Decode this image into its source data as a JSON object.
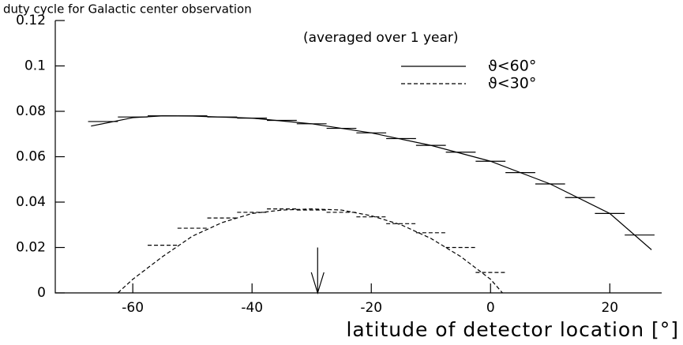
{
  "chart_data": {
    "type": "line",
    "title": "duty cycle for Galactic center observation",
    "subtitle": "(averaged over 1 year)",
    "x_label": "latitude of detector location [°]",
    "xlim": [
      -73,
      28.7
    ],
    "ylim": [
      0,
      0.12
    ],
    "xticks": [
      -60,
      -40,
      -20,
      0,
      20
    ],
    "yticks": [
      0,
      0.02,
      0.04,
      0.06,
      0.08,
      0.1,
      0.12
    ],
    "legend": "upper right",
    "series": [
      {
        "name": "ϑ<60°",
        "color": "#000",
        "dash": "solid",
        "x": [
          -67,
          -60,
          -55,
          -50,
          -40,
          -30,
          -20,
          -10,
          0,
          10,
          20,
          27
        ],
        "values": [
          0.0735,
          0.0772,
          0.078,
          0.0779,
          0.077,
          0.0745,
          0.0705,
          0.065,
          0.058,
          0.048,
          0.035,
          0.019
        ],
        "steps": {
          "width": 5,
          "x": [
            -65,
            -60,
            -55,
            -50,
            -45,
            -40,
            -35,
            -30,
            -25,
            -20,
            -15,
            -10,
            -5,
            0,
            5,
            10,
            15,
            20,
            25
          ],
          "values": [
            0.0755,
            0.0775,
            0.078,
            0.078,
            0.0775,
            0.077,
            0.076,
            0.0745,
            0.0725,
            0.0705,
            0.068,
            0.065,
            0.062,
            0.058,
            0.053,
            0.048,
            0.042,
            0.035,
            0.0255
          ]
        }
      },
      {
        "name": "ϑ<30°",
        "color": "#000",
        "dash": "dashed",
        "x": [
          -62.5,
          -60,
          -55,
          -50,
          -45,
          -40,
          -35,
          -30,
          -25,
          -20,
          -15,
          -10,
          -5,
          0,
          2
        ],
        "values": [
          0,
          0.006,
          0.016,
          0.025,
          0.031,
          0.035,
          0.0365,
          0.037,
          0.0365,
          0.034,
          0.03,
          0.024,
          0.016,
          0.006,
          0
        ],
        "steps": {
          "width": 5,
          "x": [
            -55,
            -50,
            -45,
            -40,
            -35,
            -30,
            -25,
            -20,
            -15,
            -10,
            -5,
            0
          ],
          "values": [
            0.021,
            0.0285,
            0.033,
            0.0355,
            0.037,
            0.0365,
            0.0355,
            0.0335,
            0.0305,
            0.0265,
            0.02,
            0.009
          ]
        }
      }
    ],
    "arrow": {
      "x": -29,
      "y_from": 0.02,
      "y_to": 0
    }
  }
}
